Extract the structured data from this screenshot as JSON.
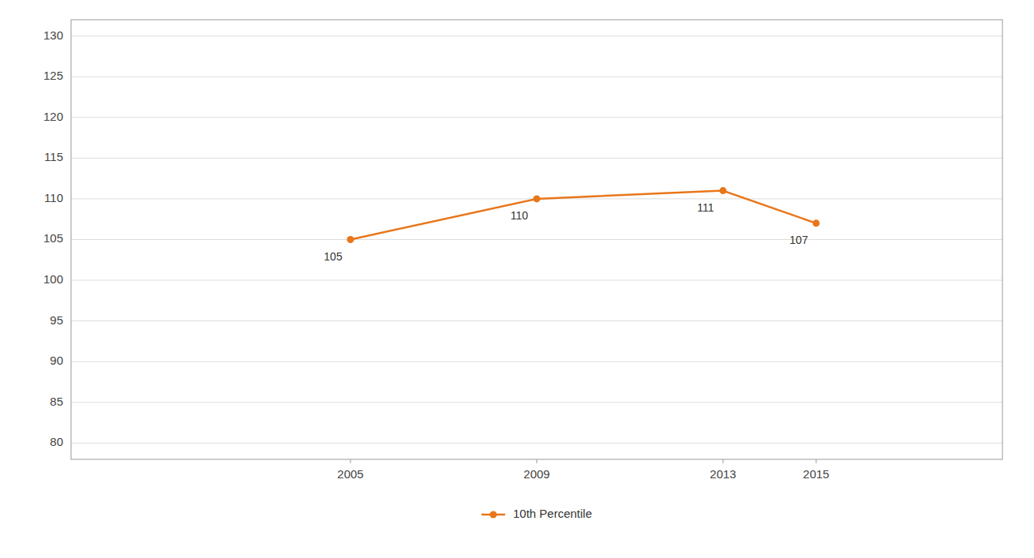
{
  "chart_data": {
    "type": "line",
    "x": [
      2005,
      2009,
      2013,
      2015
    ],
    "series": [
      {
        "name": "10th Percentile",
        "color": "#E8761A",
        "marker": "circle",
        "values": [
          105,
          110,
          111,
          107
        ]
      }
    ],
    "xlim": [
      1999,
      2019
    ],
    "xticks": [
      2005,
      2009,
      2013,
      2015
    ],
    "ylim": [
      78,
      132
    ],
    "yticks": [
      80,
      85,
      90,
      95,
      100,
      105,
      110,
      115,
      120,
      125,
      130
    ],
    "grid": true,
    "legend": "bottom",
    "data_labels": true
  }
}
